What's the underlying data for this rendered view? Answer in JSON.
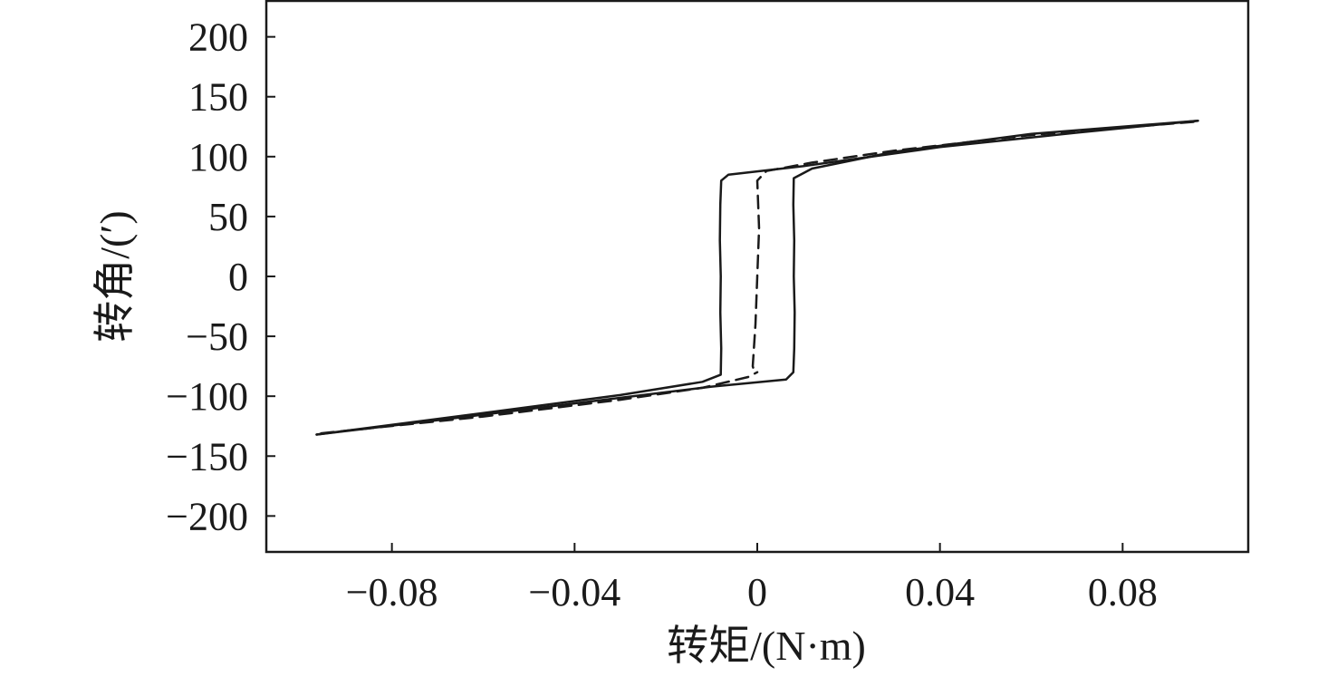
{
  "chart_data": {
    "type": "line",
    "title": "",
    "xlabel": "转矩/(N·m)",
    "ylabel": "转角/(′)",
    "xlim": [
      -0.1075,
      0.1075
    ],
    "ylim": [
      -230,
      230
    ],
    "x_ticks": [
      -0.08,
      -0.04,
      0,
      0.04,
      0.08
    ],
    "x_tick_labels": [
      "−0.08",
      "−0.04",
      "0",
      "0.04",
      "0.08"
    ],
    "y_ticks": [
      200,
      150,
      100,
      50,
      0,
      -50,
      -100,
      -150,
      -200
    ],
    "y_tick_labels": [
      "200",
      "150",
      "100",
      "50",
      "0",
      "−50",
      "−100",
      "−150",
      "−200"
    ],
    "grid": false,
    "legend": "none",
    "series": [
      {
        "style": "solid",
        "x": [
          -0.0965,
          -0.06,
          -0.03,
          -0.012,
          -0.008,
          -0.0079,
          -0.0081,
          -0.008,
          -0.0082,
          -0.0081,
          -0.0079,
          -0.0063,
          0.01,
          0.04,
          0.07,
          0.0965
        ],
        "y": [
          -132,
          -114,
          -99,
          -88,
          -82,
          -60,
          -30,
          0,
          30,
          60,
          80,
          85,
          92,
          108,
          120,
          130
        ]
      },
      {
        "style": "solid",
        "x": [
          0.0965,
          0.06,
          0.03,
          0.012,
          0.008,
          0.0079,
          0.0081,
          0.008,
          0.0082,
          0.0081,
          0.0079,
          0.0063,
          -0.01,
          -0.04,
          -0.07,
          -0.0965
        ],
        "y": [
          130,
          119,
          104,
          90,
          82,
          60,
          30,
          0,
          -30,
          -60,
          -80,
          -86,
          -92,
          -106,
          -120,
          -132
        ]
      },
      {
        "style": "dashed",
        "x": [
          0.0955,
          0.06,
          0.03,
          0.012,
          0.002,
          0.0,
          0.0004,
          0.0,
          -0.0004,
          -0.001,
          -0.0006
        ],
        "y": [
          129,
          118,
          105,
          95,
          88,
          80,
          40,
          0,
          -40,
          -75,
          -80
        ]
      },
      {
        "style": "dashed",
        "x": [
          -0.0955,
          -0.06,
          -0.03,
          -0.012,
          -0.002,
          0.0
        ],
        "y": [
          -131,
          -117,
          -103,
          -93,
          -84,
          -80
        ]
      }
    ]
  }
}
